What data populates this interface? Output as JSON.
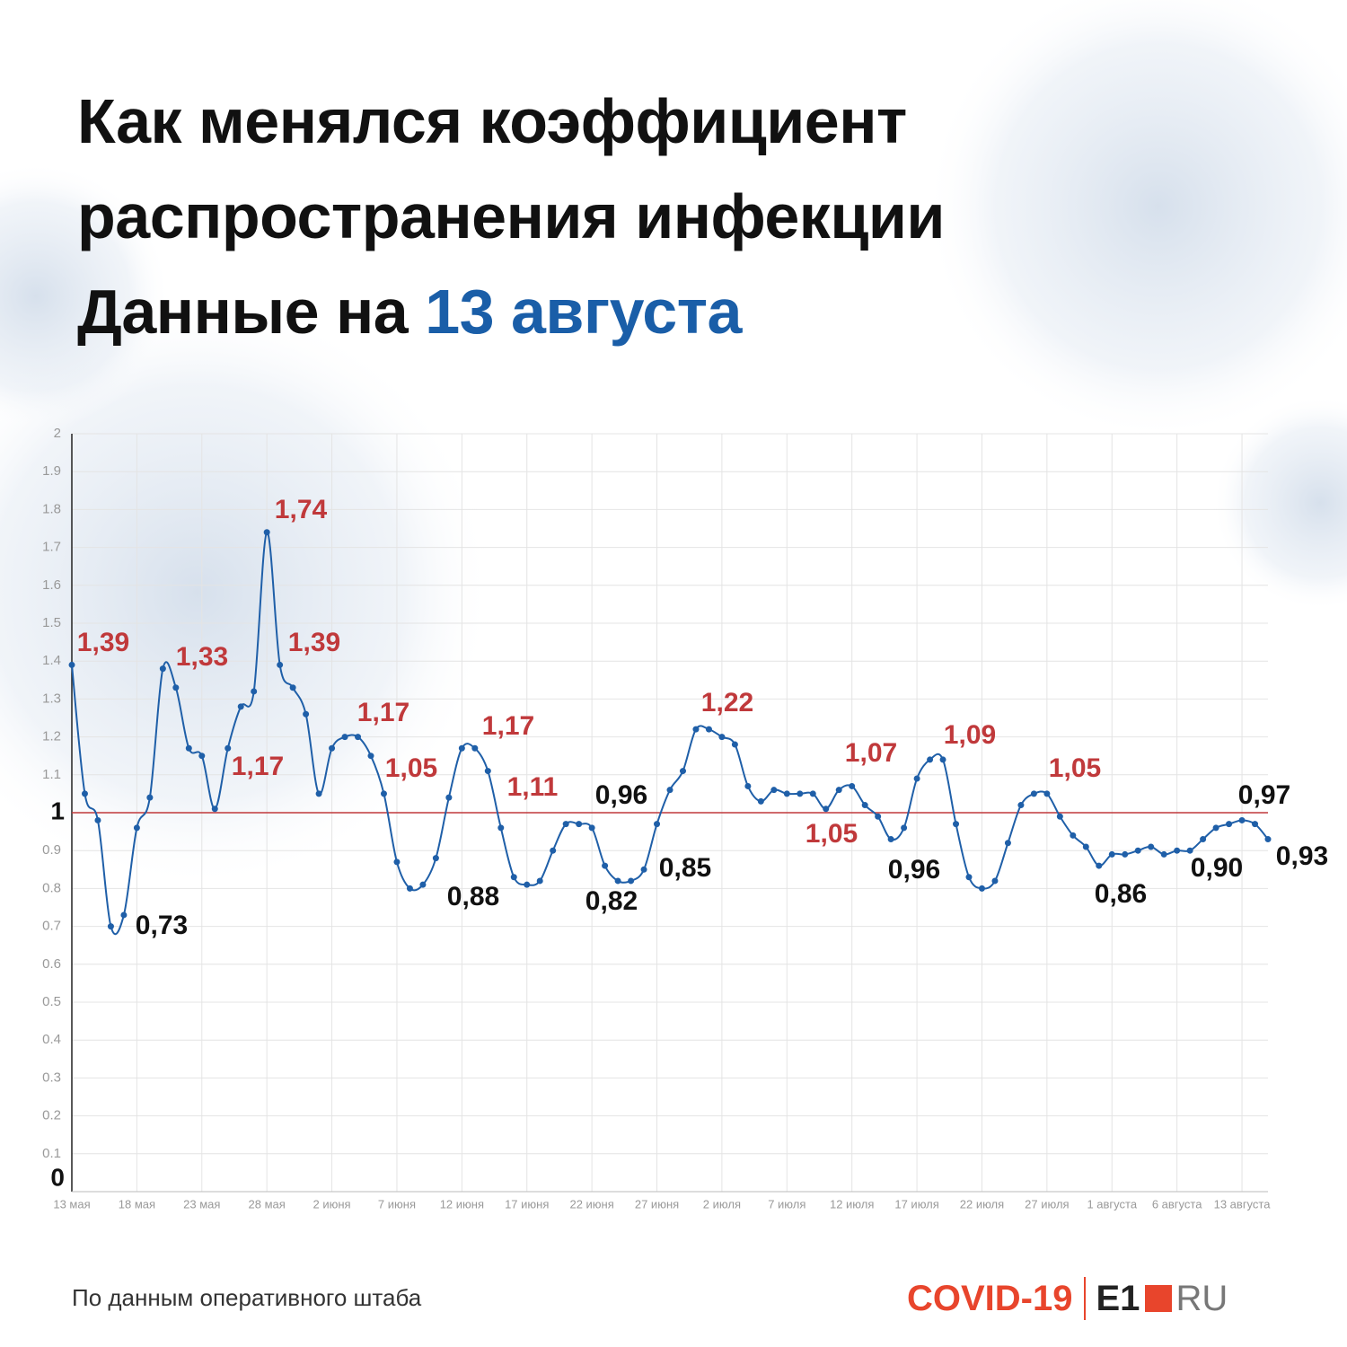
{
  "title_lines": [
    "Как менялся коэффициент",
    "распространения инфекции"
  ],
  "title_prefix": "Данные на",
  "title_date": "13 августа",
  "source": "По данным оперативного штаба",
  "logo": {
    "covid": "COVID-19",
    "e1": "E1",
    "ru": "RU"
  },
  "chart_data": {
    "type": "line",
    "categories": [
      "13 мая",
      null,
      null,
      null,
      null,
      "18 мая",
      null,
      null,
      null,
      null,
      "23 мая",
      null,
      null,
      null,
      null,
      "28 мая",
      null,
      null,
      null,
      null,
      "2 июня",
      null,
      null,
      null,
      null,
      "7 июня",
      null,
      null,
      null,
      null,
      "12 июня",
      null,
      null,
      null,
      null,
      "17 июня",
      null,
      null,
      null,
      null,
      "22 июня",
      null,
      null,
      null,
      null,
      "27 июня",
      null,
      null,
      null,
      null,
      "2 июля",
      null,
      null,
      null,
      null,
      "7 июля",
      null,
      null,
      null,
      null,
      "12 июля",
      null,
      null,
      null,
      null,
      "17 июля",
      null,
      null,
      null,
      null,
      "22 июля",
      null,
      null,
      null,
      null,
      "27 июля",
      null,
      null,
      null,
      null,
      "1 августа",
      null,
      null,
      null,
      null,
      "6 августа",
      null,
      null,
      null,
      null,
      "13 августа",
      null,
      null
    ],
    "series": [
      {
        "color": "#1f5fa8",
        "values": [
          1.39,
          1.05,
          0.98,
          0.7,
          0.73,
          0.96,
          1.04,
          1.38,
          1.33,
          1.17,
          1.15,
          1.01,
          1.17,
          1.28,
          1.32,
          1.74,
          1.39,
          1.33,
          1.26,
          1.05,
          1.17,
          1.2,
          1.2,
          1.15,
          1.05,
          0.87,
          0.8,
          0.81,
          0.88,
          1.04,
          1.17,
          1.17,
          1.11,
          0.96,
          0.83,
          0.81,
          0.82,
          0.9,
          0.97,
          0.97,
          0.96,
          0.86,
          0.82,
          0.82,
          0.85,
          0.97,
          1.06,
          1.11,
          1.22,
          1.22,
          1.2,
          1.18,
          1.07,
          1.03,
          1.06,
          1.05,
          1.05,
          1.05,
          1.01,
          1.06,
          1.07,
          1.02,
          0.99,
          0.93,
          0.96,
          1.09,
          1.14,
          1.14,
          0.97,
          0.83,
          0.8,
          0.82,
          0.92,
          1.02,
          1.05,
          1.05,
          0.99,
          0.94,
          0.91,
          0.86,
          0.89,
          0.89,
          0.9,
          0.91,
          0.89,
          0.9,
          0.9,
          0.93,
          0.96,
          0.97,
          0.98,
          0.97,
          0.93
        ],
        "value_labels": [
          "1,39",
          null,
          null,
          null,
          "0,73",
          null,
          null,
          null,
          "1,33",
          null,
          null,
          null,
          "1,17",
          null,
          null,
          "1,74",
          "1,39",
          null,
          null,
          null,
          "1,17",
          null,
          null,
          null,
          "1,05",
          null,
          null,
          null,
          "0,88",
          null,
          null,
          "1,17",
          "1,11",
          null,
          null,
          null,
          null,
          null,
          null,
          null,
          "0,96",
          null,
          "0,82",
          null,
          "0,85",
          null,
          null,
          null,
          "1,22",
          null,
          null,
          null,
          null,
          null,
          null,
          null,
          null,
          "1,05",
          null,
          null,
          "1,07",
          null,
          null,
          null,
          "0,96",
          "1,09",
          null,
          null,
          null,
          null,
          null,
          null,
          null,
          null,
          null,
          "1,05",
          null,
          null,
          null,
          "0,86",
          null,
          null,
          null,
          null,
          null,
          null,
          "0,90",
          null,
          null,
          "0,97",
          null,
          null,
          "0,93"
        ]
      }
    ],
    "label_color_above": "#c0393b",
    "label_color_below": "#111111",
    "reference_line": {
      "value": 1,
      "color": "#c0393b"
    },
    "ylim": [
      0,
      2
    ],
    "yticks": [
      0,
      0.1,
      0.2,
      0.3,
      0.4,
      0.5,
      0.6,
      0.7,
      0.8,
      0.9,
      1,
      1.1,
      1.2,
      1.3,
      1.4,
      1.5,
      1.6,
      1.7,
      1.8,
      1.9,
      2
    ],
    "grid": true
  }
}
